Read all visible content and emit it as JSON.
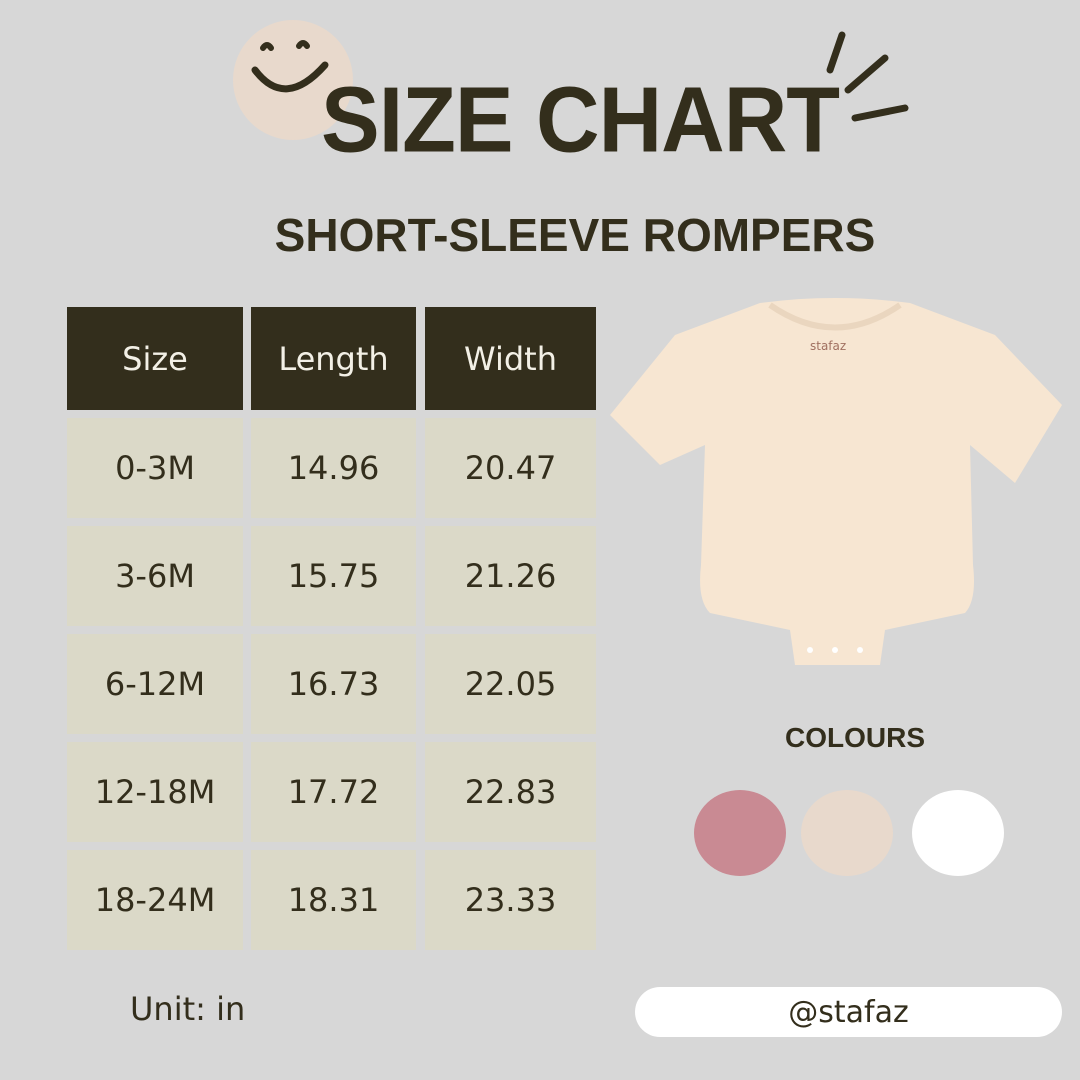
{
  "header": {
    "title": "SIZE CHART",
    "subtitle": "SHORT-SLEEVE ROMPERS",
    "decoration_icons": [
      "smiley-face-icon",
      "sparkle-lines-icon"
    ]
  },
  "table": {
    "columns": [
      "Size",
      "Length",
      "Width"
    ],
    "rows": [
      [
        "0-3M",
        "14.96",
        "20.47"
      ],
      [
        "3-6M",
        "15.75",
        "21.26"
      ],
      [
        "6-12M",
        "16.73",
        "22.05"
      ],
      [
        "12-18M",
        "17.72",
        "22.83"
      ],
      [
        "18-24M",
        "18.31",
        "23.33"
      ]
    ]
  },
  "product": {
    "logo_text": "stafaz",
    "garment_color": "#f7e6d2"
  },
  "colours": {
    "label": "COLOURS",
    "swatches": [
      "#c98a93",
      "#e8d9cc",
      "#ffffff"
    ]
  },
  "footer": {
    "unit": "Unit: in",
    "handle": "@stafaz"
  },
  "colors": {
    "background": "#d7d7d7",
    "dark": "#332e1c",
    "cell": "#dbd9c8",
    "accent_circle": "#e8d9cc"
  }
}
